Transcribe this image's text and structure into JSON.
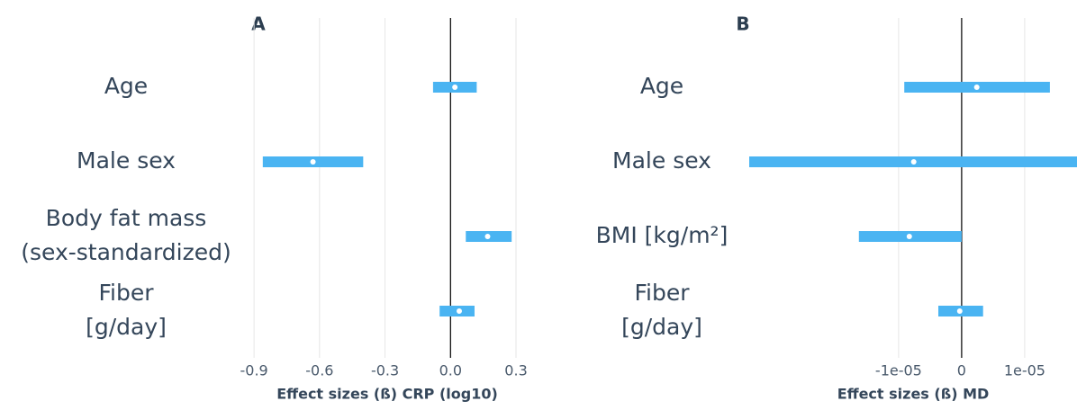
{
  "chart_data": [
    {
      "type": "forest",
      "title": "A",
      "xlabel": "Effect sizes (ß) CRP (log10)",
      "categories": [
        [
          "Age"
        ],
        [
          "Male sex"
        ],
        [
          "Body fat mass",
          "(sex-standardized)"
        ],
        [
          "Fiber",
          "[g/day]"
        ]
      ],
      "values": [
        0.02,
        -0.63,
        0.17,
        0.04
      ],
      "lower": [
        -0.08,
        -0.86,
        0.07,
        -0.05
      ],
      "upper": [
        0.12,
        -0.4,
        0.28,
        0.11
      ],
      "color": "#4ab4f2",
      "xlim": [
        -0.95,
        0.37
      ],
      "xticks": [
        {
          "value": -0.9,
          "label": "-0.9"
        },
        {
          "value": -0.6,
          "label": "-0.6"
        },
        {
          "value": -0.3,
          "label": "-0.3"
        },
        {
          "value": 0,
          "label": "0.0"
        },
        {
          "value": 0.3,
          "label": "0.3"
        }
      ],
      "vline": 0,
      "grid": true
    },
    {
      "type": "forest",
      "title": "B",
      "xlabel": "Effect sizes (ß) MD",
      "categories": [
        [
          "Age"
        ],
        [
          "Male sex"
        ],
        [
          "BMI [kg/m²]"
        ],
        [
          "Fiber",
          "[g/day]"
        ]
      ],
      "values": [
        2.4e-06,
        -7.6e-06,
        -8.3e-06,
        -3e-07
      ],
      "lower": [
        -9.1e-06,
        -3.4e-05,
        -1.63e-05,
        -3.7e-06
      ],
      "upper": [
        1.4e-05,
        2.1e-05,
        0,
        3.4e-06
      ],
      "color": "#4ab4f2",
      "xlim": [
        -3.37e-05,
        1.83e-05
      ],
      "xticks": [
        {
          "value": -1e-05,
          "label": "-1e-05"
        },
        0,
        {
          "value": 1e-05,
          "label": "1e-05"
        }
      ],
      "vline": 0,
      "grid": true
    }
  ]
}
